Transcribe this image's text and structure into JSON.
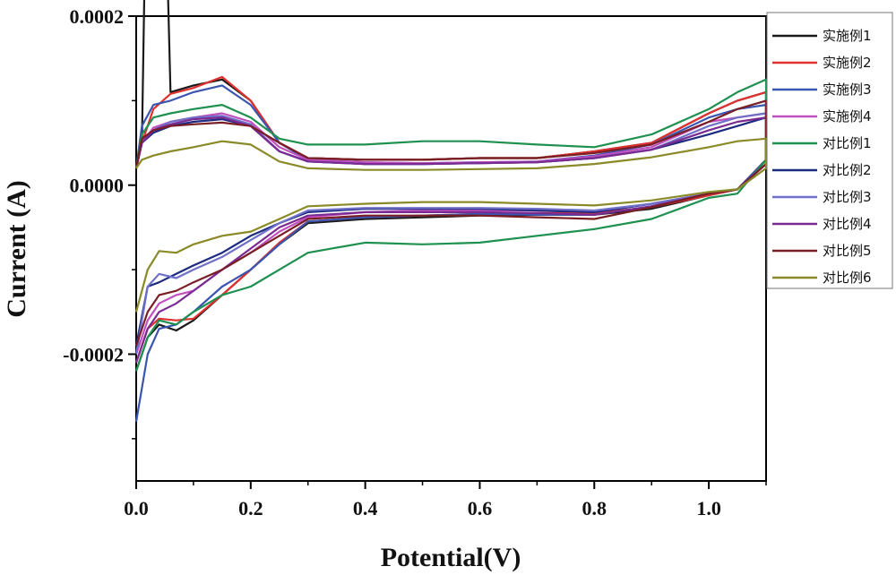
{
  "chart_data": {
    "type": "line",
    "title": "",
    "xlabel": "Potential(V)",
    "ylabel": "Current (A)",
    "xlim": [
      0,
      1.1
    ],
    "ylim": [
      -0.00035,
      0.0002
    ],
    "x_ticks": [
      0.0,
      0.2,
      0.4,
      0.6,
      0.8,
      1.0
    ],
    "x_tick_labels": [
      "0.0",
      "0.2",
      "0.4",
      "0.6",
      "0.8",
      "1.0"
    ],
    "y_ticks": [
      0.0002,
      0.0,
      -0.0002
    ],
    "y_tick_labels": [
      "0.0002",
      "0.0000",
      "-0.0002"
    ],
    "grid": false,
    "legend_position": "top-right",
    "x_anodic": [
      0.0,
      0.01,
      0.03,
      0.06,
      0.1,
      0.15,
      0.2,
      0.25,
      0.3,
      0.4,
      0.5,
      0.6,
      0.7,
      0.8,
      0.9,
      1.0,
      1.05,
      1.1
    ],
    "x_cathodic": [
      1.1,
      1.05,
      1.0,
      0.9,
      0.8,
      0.7,
      0.6,
      0.5,
      0.4,
      0.3,
      0.25,
      0.2,
      0.15,
      0.1,
      0.07,
      0.04,
      0.02,
      0.0
    ],
    "series": [
      {
        "name": "实施例1",
        "color": "#1a1a1a",
        "anodic": [
          2e-05,
          5e-05,
          0.0009,
          0.00011,
          0.000118,
          0.000125,
          0.0001,
          5e-05,
          3.2e-05,
          3e-05,
          3e-05,
          3.2e-05,
          3.2e-05,
          4e-05,
          5e-05,
          8.5e-05,
          0.0001,
          0.00011
        ],
        "cathodic": [
          3e-05,
          -5e-06,
          -1.2e-05,
          -2.8e-05,
          -3.5e-05,
          -3.5e-05,
          -3.6e-05,
          -3.8e-05,
          -4e-05,
          -4.5e-05,
          -7e-05,
          -0.0001,
          -0.00013,
          -0.00016,
          -0.000172,
          -0.000165,
          -0.00018,
          -0.00022
        ]
      },
      {
        "name": "实施例2",
        "color": "#e0302f",
        "anodic": [
          2e-05,
          5e-05,
          9e-05,
          0.000108,
          0.000115,
          0.000128,
          0.0001,
          5e-05,
          3.2e-05,
          3e-05,
          3e-05,
          3.2e-05,
          3.2e-05,
          4e-05,
          5e-05,
          8.5e-05,
          0.0001,
          0.00011
        ],
        "cathodic": [
          3e-05,
          -5e-06,
          -1.2e-05,
          -2.6e-05,
          -3.3e-05,
          -3.3e-05,
          -3.4e-05,
          -3.6e-05,
          -3.8e-05,
          -4.3e-05,
          -6.8e-05,
          -0.0001,
          -0.00013,
          -0.000158,
          -0.00016,
          -0.000158,
          -0.00017,
          -0.00021
        ]
      },
      {
        "name": "实施例3",
        "color": "#3a55b0",
        "anodic": [
          2e-05,
          7e-05,
          9.5e-05,
          0.0001,
          0.00011,
          0.000118,
          9.5e-05,
          5e-05,
          3e-05,
          2.7e-05,
          2.6e-05,
          2.7e-05,
          2.8e-05,
          3.5e-05,
          4.8e-05,
          8e-05,
          9e-05,
          9.5e-05
        ],
        "cathodic": [
          3e-05,
          -5e-06,
          -1e-05,
          -2.5e-05,
          -3.5e-05,
          -3.5e-05,
          -3.4e-05,
          -3.6e-05,
          -3.8e-05,
          -4.3e-05,
          -7e-05,
          -0.0001,
          -0.00012,
          -0.00015,
          -0.000165,
          -0.00017,
          -0.0002,
          -0.00028
        ]
      },
      {
        "name": "实施例4",
        "color": "#c050c0",
        "anodic": [
          2e-05,
          5e-05,
          6.8e-05,
          7.5e-05,
          8e-05,
          8.5e-05,
          7.5e-05,
          4.5e-05,
          3e-05,
          2.7e-05,
          2.6e-05,
          2.7e-05,
          2.8e-05,
          3.4e-05,
          4.5e-05,
          7.5e-05,
          8e-05,
          8.5e-05
        ],
        "cathodic": [
          2.5e-05,
          -5e-06,
          -1e-05,
          -2.2e-05,
          -3.2e-05,
          -3e-05,
          -3e-05,
          -3e-05,
          -3.2e-05,
          -3.8e-05,
          -5.5e-05,
          -8e-05,
          -0.0001,
          -0.000125,
          -0.00013,
          -0.00014,
          -0.00016,
          -0.0002
        ]
      },
      {
        "name": "对比例1",
        "color": "#1e9050",
        "anodic": [
          2e-05,
          6e-05,
          8e-05,
          8.5e-05,
          9e-05,
          9.5e-05,
          8e-05,
          5.5e-05,
          4.8e-05,
          4.8e-05,
          5.2e-05,
          5.2e-05,
          4.8e-05,
          4.5e-05,
          6e-05,
          9e-05,
          0.00011,
          0.000125
        ],
        "cathodic": [
          3e-05,
          -1e-05,
          -1.5e-05,
          -4e-05,
          -5.2e-05,
          -6e-05,
          -6.8e-05,
          -7e-05,
          -6.8e-05,
          -8e-05,
          -0.0001,
          -0.00012,
          -0.00013,
          -0.00015,
          -0.000165,
          -0.00016,
          -0.00018,
          -0.00022
        ]
      },
      {
        "name": "对比例2",
        "color": "#1c2a80",
        "anodic": [
          2e-05,
          5e-05,
          6.2e-05,
          7e-05,
          7.5e-05,
          7.8e-05,
          7e-05,
          4e-05,
          2.8e-05,
          2.5e-05,
          2.5e-05,
          2.6e-05,
          2.7e-05,
          3.2e-05,
          4.2e-05,
          6e-05,
          7e-05,
          8e-05
        ],
        "cathodic": [
          2.5e-05,
          -5e-06,
          -1e-05,
          -2.2e-05,
          -3.2e-05,
          -3e-05,
          -2.8e-05,
          -2.8e-05,
          -2.8e-05,
          -3.2e-05,
          -4.5e-05,
          -6e-05,
          -8e-05,
          -9.5e-05,
          -0.000105,
          -0.000115,
          -0.00012,
          -0.00019
        ]
      },
      {
        "name": "对比例3",
        "color": "#7070c8",
        "anodic": [
          2e-05,
          5e-05,
          6.5e-05,
          7.5e-05,
          8e-05,
          8.2e-05,
          7.2e-05,
          4e-05,
          2.8e-05,
          2.5e-05,
          2.5e-05,
          2.6e-05,
          2.7e-05,
          3.2e-05,
          4.2e-05,
          7e-05,
          8e-05,
          8.5e-05
        ],
        "cathodic": [
          2.5e-05,
          -5e-06,
          -1e-05,
          -2.2e-05,
          -3e-05,
          -2.8e-05,
          -2.7e-05,
          -2.7e-05,
          -2.7e-05,
          -3e-05,
          -4.5e-05,
          -6.5e-05,
          -8.5e-05,
          -0.0001,
          -0.00011,
          -0.000105,
          -0.00012,
          -0.0002
        ]
      },
      {
        "name": "对比例4",
        "color": "#7a2a90",
        "anodic": [
          2e-05,
          5e-05,
          6.5e-05,
          7.2e-05,
          7.8e-05,
          8e-05,
          7e-05,
          4e-05,
          2.8e-05,
          2.5e-05,
          2.5e-05,
          2.6e-05,
          2.7e-05,
          3.2e-05,
          4.2e-05,
          6.5e-05,
          7.5e-05,
          8e-05
        ],
        "cathodic": [
          2.5e-05,
          -5e-06,
          -1e-05,
          -2.5e-05,
          -3.5e-05,
          -3.3e-05,
          -3.2e-05,
          -3.2e-05,
          -3.2e-05,
          -3.6e-05,
          -5e-05,
          -7.5e-05,
          -0.0001,
          -0.000125,
          -0.00014,
          -0.00015,
          -0.00017,
          -0.00021
        ]
      },
      {
        "name": "对比例5",
        "color": "#7a1e26",
        "anodic": [
          2e-05,
          5.5e-05,
          6.5e-05,
          7e-05,
          7.2e-05,
          7.4e-05,
          7e-05,
          5e-05,
          3.2e-05,
          3e-05,
          3e-05,
          3.2e-05,
          3.2e-05,
          3.8e-05,
          4.8e-05,
          7.5e-05,
          9e-05,
          0.0001
        ],
        "cathodic": [
          2.5e-05,
          -5e-06,
          -1e-05,
          -2.6e-05,
          -4e-05,
          -3.8e-05,
          -3.6e-05,
          -3.6e-05,
          -3.6e-05,
          -4e-05,
          -6e-05,
          -8e-05,
          -0.0001,
          -0.000115,
          -0.000125,
          -0.00013,
          -0.00015,
          -0.00019
        ]
      },
      {
        "name": "对比例6",
        "color": "#8a8a28",
        "anodic": [
          2e-05,
          3e-05,
          3.5e-05,
          4e-05,
          4.5e-05,
          5.2e-05,
          4.8e-05,
          2.8e-05,
          2e-05,
          1.8e-05,
          1.8e-05,
          1.9e-05,
          2e-05,
          2.5e-05,
          3.3e-05,
          4.5e-05,
          5.2e-05,
          5.5e-05
        ],
        "cathodic": [
          2e-05,
          -5e-06,
          -8e-06,
          -1.8e-05,
          -2.4e-05,
          -2.2e-05,
          -2e-05,
          -2e-05,
          -2.2e-05,
          -2.5e-05,
          -4e-05,
          -5.5e-05,
          -6e-05,
          -7e-05,
          -8e-05,
          -7.8e-05,
          -0.0001,
          -0.00015
        ]
      }
    ]
  }
}
